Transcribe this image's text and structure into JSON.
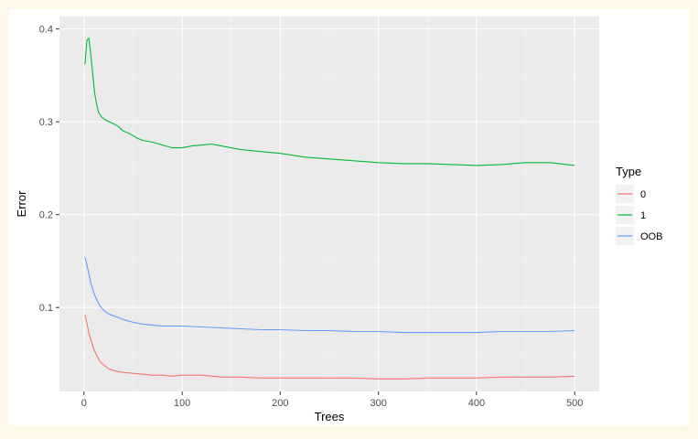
{
  "chart_data": {
    "type": "line",
    "xlabel": "Trees",
    "ylabel": "Error",
    "xlim": [
      -25,
      525
    ],
    "ylim": [
      0.0095,
      0.4135
    ],
    "x_ticks": [
      0,
      100,
      200,
      300,
      400,
      500
    ],
    "x_tick_labels": [
      "0",
      "100",
      "200",
      "300",
      "400",
      "500"
    ],
    "y_ticks": [
      0.1,
      0.2,
      0.3,
      0.4
    ],
    "y_tick_labels": [
      "0.1",
      "0.2",
      "0.3",
      "0.4"
    ],
    "grid": true,
    "legend": {
      "title": "Type",
      "position": "right"
    },
    "series": [
      {
        "name": "0",
        "color": "#f8766d",
        "x": [
          1,
          3,
          5,
          8,
          10,
          13,
          16,
          20,
          25,
          30,
          35,
          40,
          50,
          60,
          70,
          80,
          90,
          100,
          120,
          140,
          160,
          180,
          200,
          225,
          250,
          275,
          300,
          325,
          350,
          375,
          400,
          425,
          450,
          475,
          500
        ],
        "y": [
          0.092,
          0.083,
          0.072,
          0.062,
          0.055,
          0.048,
          0.042,
          0.038,
          0.034,
          0.032,
          0.031,
          0.03,
          0.029,
          0.028,
          0.027,
          0.027,
          0.026,
          0.027,
          0.027,
          0.025,
          0.025,
          0.024,
          0.024,
          0.024,
          0.024,
          0.024,
          0.023,
          0.023,
          0.024,
          0.024,
          0.024,
          0.025,
          0.025,
          0.025,
          0.026
        ]
      },
      {
        "name": "1",
        "color": "#00ba38",
        "x": [
          1,
          3,
          5,
          7,
          9,
          11,
          13,
          15,
          18,
          22,
          26,
          30,
          35,
          40,
          45,
          50,
          55,
          60,
          70,
          80,
          90,
          100,
          110,
          120,
          130,
          140,
          160,
          180,
          200,
          225,
          250,
          275,
          300,
          325,
          350,
          375,
          400,
          425,
          450,
          475,
          500
        ],
        "y": [
          0.362,
          0.388,
          0.39,
          0.372,
          0.35,
          0.33,
          0.318,
          0.31,
          0.305,
          0.302,
          0.3,
          0.298,
          0.295,
          0.29,
          0.288,
          0.285,
          0.282,
          0.28,
          0.278,
          0.275,
          0.272,
          0.272,
          0.274,
          0.275,
          0.276,
          0.274,
          0.27,
          0.268,
          0.266,
          0.262,
          0.26,
          0.258,
          0.256,
          0.255,
          0.255,
          0.254,
          0.253,
          0.254,
          0.256,
          0.256,
          0.253
        ]
      },
      {
        "name": "OOB",
        "color": "#619cff",
        "x": [
          1,
          3,
          5,
          7,
          10,
          13,
          16,
          20,
          25,
          30,
          35,
          40,
          50,
          60,
          70,
          80,
          90,
          100,
          120,
          140,
          160,
          180,
          200,
          225,
          250,
          275,
          300,
          325,
          350,
          375,
          400,
          425,
          450,
          475,
          500
        ],
        "y": [
          0.154,
          0.146,
          0.136,
          0.126,
          0.116,
          0.108,
          0.102,
          0.097,
          0.093,
          0.091,
          0.089,
          0.087,
          0.084,
          0.082,
          0.081,
          0.08,
          0.08,
          0.08,
          0.079,
          0.078,
          0.077,
          0.076,
          0.076,
          0.075,
          0.075,
          0.074,
          0.074,
          0.073,
          0.073,
          0.073,
          0.073,
          0.074,
          0.074,
          0.074,
          0.075
        ]
      }
    ]
  }
}
